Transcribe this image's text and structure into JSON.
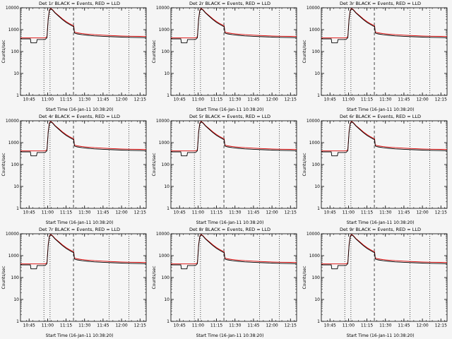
{
  "figure": {
    "background": "#f5f5f5",
    "axis_color": "#000000",
    "events_color": "#000000",
    "lld_color": "#dd0000"
  },
  "chart_data": {
    "type": "line",
    "grid": "3x3",
    "xlabel": "Start Time (16-Jan-11 10:38:20)",
    "ylabel": "Counts/sec",
    "x_unit": "minutes since 10:38:20",
    "xlim": [
      0,
      102
    ],
    "ylim": [
      1,
      10000
    ],
    "yscale": "log",
    "legend_note": "BLACK = Events, RED = LLD",
    "yticks": [
      1,
      10,
      100,
      1000,
      10000
    ],
    "xminor_step": 5,
    "xticks": [
      {
        "t": 7,
        "label": "10:45"
      },
      {
        "t": 22,
        "label": "11:00"
      },
      {
        "t": 37,
        "label": "11:15"
      },
      {
        "t": 52,
        "label": "11:30"
      },
      {
        "t": 67,
        "label": "11:45"
      },
      {
        "t": 82,
        "label": "12:00"
      },
      {
        "t": 97,
        "label": "12:15"
      }
    ],
    "vlines": [
      {
        "t": 19,
        "style": "dotted"
      },
      {
        "t": 24,
        "style": "dotted"
      },
      {
        "t": 43,
        "style": "dashed"
      },
      {
        "t": 72,
        "style": "dotted"
      },
      {
        "t": 88,
        "style": "dotted"
      }
    ],
    "series": [
      {
        "name": "Events",
        "color": "#000000",
        "points": [
          [
            0,
            380
          ],
          [
            8,
            380
          ],
          [
            8.5,
            250
          ],
          [
            13,
            250
          ],
          [
            13.5,
            355
          ],
          [
            20,
            355
          ],
          [
            21.5,
            430
          ],
          [
            22.5,
            3000
          ],
          [
            23.5,
            7600
          ],
          [
            24.5,
            8800
          ],
          [
            26,
            7800
          ],
          [
            28,
            5800
          ],
          [
            31,
            4100
          ],
          [
            34,
            2900
          ],
          [
            37,
            2150
          ],
          [
            40,
            1700
          ],
          [
            42.5,
            1420
          ],
          [
            43.2,
            1380
          ],
          [
            43.8,
            700
          ],
          [
            46,
            640
          ],
          [
            50,
            590
          ],
          [
            55,
            550
          ],
          [
            60,
            520
          ],
          [
            67,
            497
          ],
          [
            75,
            475
          ],
          [
            82,
            460
          ],
          [
            90,
            445
          ],
          [
            97,
            435
          ],
          [
            102,
            430
          ]
        ]
      },
      {
        "name": "LLD",
        "color": "#dd0000",
        "points": [
          [
            0,
            420
          ],
          [
            20,
            420
          ],
          [
            21.5,
            470
          ],
          [
            22.5,
            3300
          ],
          [
            23.5,
            8000
          ],
          [
            24.5,
            9200
          ],
          [
            26,
            8200
          ],
          [
            28,
            6100
          ],
          [
            31,
            4400
          ],
          [
            34,
            3150
          ],
          [
            37,
            2350
          ],
          [
            40,
            1850
          ],
          [
            42.5,
            1560
          ],
          [
            43.2,
            1520
          ],
          [
            43.8,
            780
          ],
          [
            46,
            715
          ],
          [
            50,
            660
          ],
          [
            55,
            620
          ],
          [
            60,
            588
          ],
          [
            67,
            560
          ],
          [
            75,
            535
          ],
          [
            82,
            518
          ],
          [
            90,
            502
          ],
          [
            97,
            492
          ],
          [
            102,
            487
          ]
        ]
      }
    ],
    "panels": [
      {
        "title": "Det 1r BLACK = Events, RED = LLD"
      },
      {
        "title": "Det 2r BLACK = Events, RED = LLD"
      },
      {
        "title": "Det 3r BLACK = Events, RED = LLD"
      },
      {
        "title": "Det 4r BLACK = Events, RED = LLD"
      },
      {
        "title": "Det 5r BLACK = Events, RED = LLD"
      },
      {
        "title": "Det 6r BLACK = Events, RED = LLD"
      },
      {
        "title": "Det 7r BLACK = Events, RED = LLD"
      },
      {
        "title": "Det 8r BLACK = Events, RED = LLD"
      },
      {
        "title": "Det 9r BLACK = Events, RED = LLD"
      }
    ]
  }
}
